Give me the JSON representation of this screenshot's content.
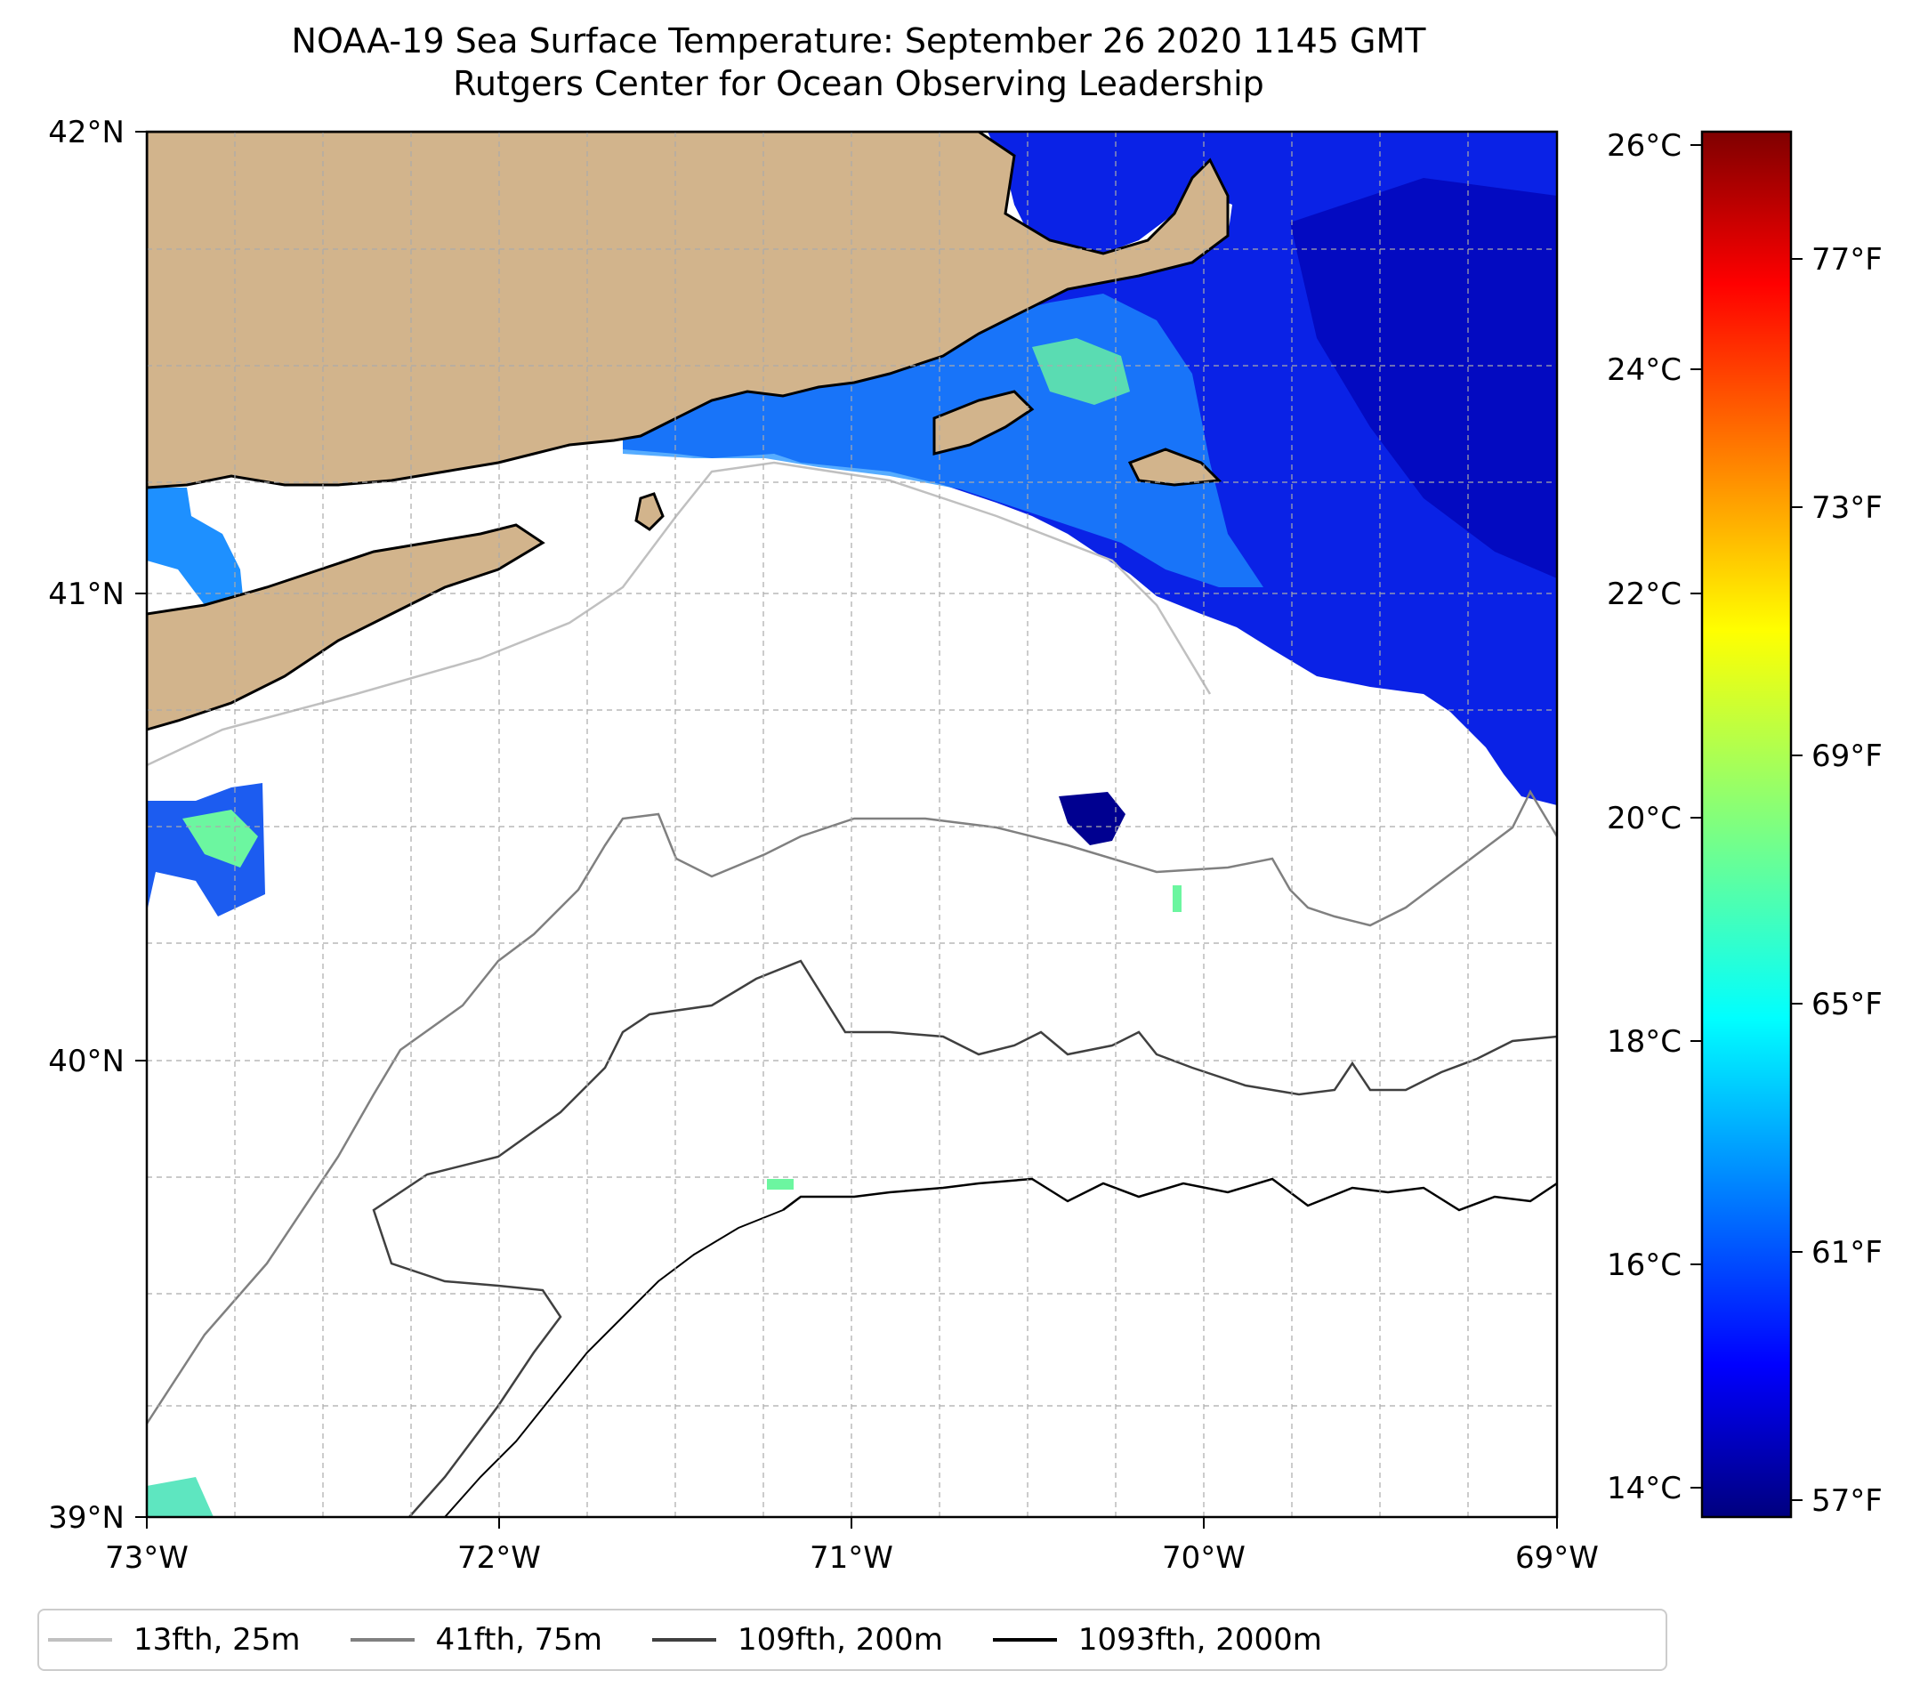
{
  "title": {
    "line1": "NOAA-19 Sea Surface Temperature: September 26 2020 1145 GMT",
    "line2": "Rutgers Center for Ocean Observing Leadership"
  },
  "map": {
    "lat_range": [
      39,
      42
    ],
    "lon_range": [
      -73,
      -69
    ],
    "lat_ticks": [
      "42°N",
      "41°N",
      "40°N",
      "39°N"
    ],
    "lon_ticks": [
      "73°W",
      "72°W",
      "71°W",
      "70°W",
      "69°W"
    ],
    "grid": true,
    "colors": {
      "land": "#d2b48c",
      "coastline": "#000000",
      "frame": "#000000"
    }
  },
  "colorbar": {
    "colormap": "jet",
    "celsius_labels": [
      "26°C",
      "24°C",
      "22°C",
      "20°C",
      "18°C",
      "16°C",
      "14°C"
    ],
    "fahrenheit_labels": [
      "77°F",
      "73°F",
      "69°F",
      "65°F",
      "61°F",
      "57°F"
    ]
  },
  "legend": [
    {
      "label": "13fth, 25m",
      "color": "#c0c0c0"
    },
    {
      "label": "41fth, 75m",
      "color": "#808080"
    },
    {
      "label": "109fth, 200m",
      "color": "#404040"
    },
    {
      "label": "1093fth, 2000m",
      "color": "#000000"
    }
  ]
}
